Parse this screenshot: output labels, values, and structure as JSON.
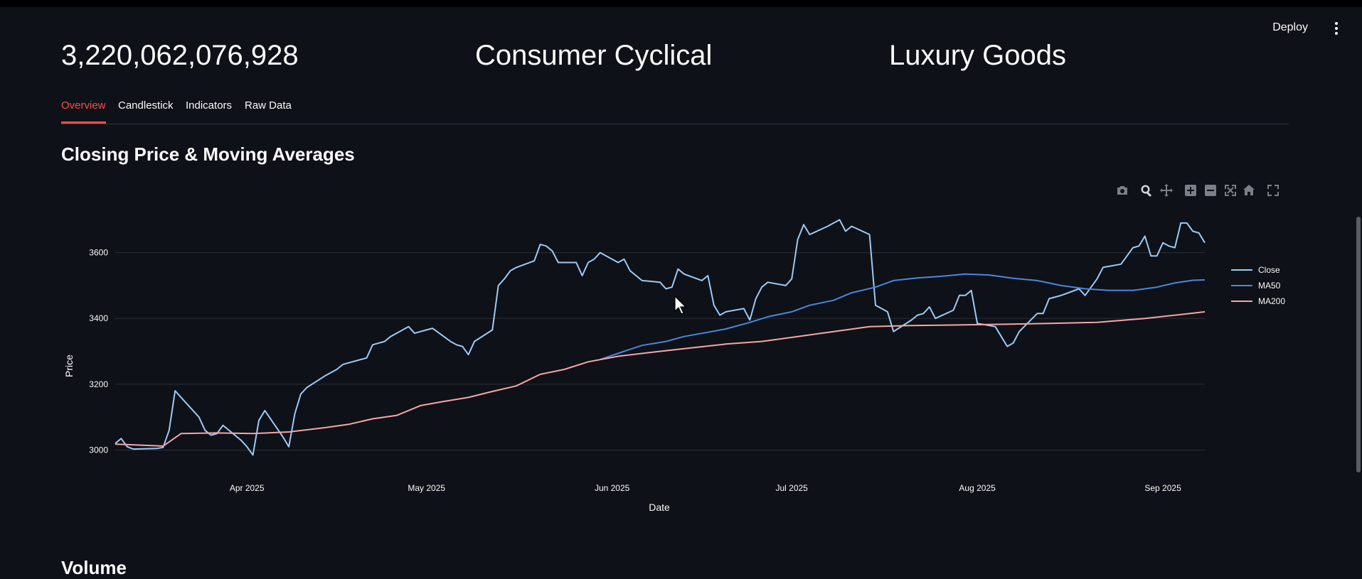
{
  "header": {
    "deploy_label": "Deploy",
    "metrics": [
      "3,220,062,076,928",
      "Consumer Cyclical",
      "Luxury Goods"
    ]
  },
  "tabs": [
    "Overview",
    "Candlestick",
    "Indicators",
    "Raw Data"
  ],
  "sections": {
    "price_title": "Closing Price & Moving Averages",
    "volume_title": "Volume"
  },
  "toolbar_icons": [
    "camera-icon",
    "zoom-icon",
    "pan-icon",
    "zoom-in-icon",
    "zoom-out-icon",
    "autoscale-icon",
    "home-icon",
    "fullscreen-icon"
  ],
  "chart_data": {
    "type": "line",
    "xlabel": "Date",
    "ylabel": "Price",
    "ylim": [
      2960,
      3720
    ],
    "y_ticks": [
      3000,
      3200,
      3400,
      3600
    ],
    "x_range": [
      "2025-03-10",
      "2025-09-08"
    ],
    "x_ticks": [
      {
        "date": "2025-04-01",
        "label": "Apr 2025"
      },
      {
        "date": "2025-05-01",
        "label": "May 2025"
      },
      {
        "date": "2025-06-01",
        "label": "Jun 2025"
      },
      {
        "date": "2025-07-01",
        "label": "Jul 2025"
      },
      {
        "date": "2025-08-01",
        "label": "Aug 2025"
      },
      {
        "date": "2025-09-01",
        "label": "Sep 2025"
      }
    ],
    "grid": true,
    "legend_position": "right",
    "series": [
      {
        "name": "Close",
        "color": "#9ccaf7",
        "points": [
          [
            "2025-03-10",
            3020
          ],
          [
            "2025-03-11",
            3035
          ],
          [
            "2025-03-12",
            3010
          ],
          [
            "2025-03-13",
            3003
          ],
          [
            "2025-03-17",
            3005
          ],
          [
            "2025-03-18",
            3008
          ],
          [
            "2025-03-19",
            3060
          ],
          [
            "2025-03-20",
            3180
          ],
          [
            "2025-03-21",
            3160
          ],
          [
            "2025-03-24",
            3100
          ],
          [
            "2025-03-25",
            3060
          ],
          [
            "2025-03-26",
            3045
          ],
          [
            "2025-03-27",
            3050
          ],
          [
            "2025-03-28",
            3075
          ],
          [
            "2025-03-31",
            3030
          ],
          [
            "2025-04-01",
            3010
          ],
          [
            "2025-04-02",
            2985
          ],
          [
            "2025-04-03",
            3090
          ],
          [
            "2025-04-04",
            3120
          ],
          [
            "2025-04-07",
            3040
          ],
          [
            "2025-04-08",
            3010
          ],
          [
            "2025-04-09",
            3110
          ],
          [
            "2025-04-10",
            3170
          ],
          [
            "2025-04-11",
            3190
          ],
          [
            "2025-04-14",
            3225
          ],
          [
            "2025-04-15",
            3235
          ],
          [
            "2025-04-16",
            3245
          ],
          [
            "2025-04-17",
            3260
          ],
          [
            "2025-04-18",
            3265
          ],
          [
            "2025-04-21",
            3280
          ],
          [
            "2025-04-22",
            3320
          ],
          [
            "2025-04-23",
            3325
          ],
          [
            "2025-04-24",
            3330
          ],
          [
            "2025-04-25",
            3345
          ],
          [
            "2025-04-28",
            3375
          ],
          [
            "2025-04-29",
            3355
          ],
          [
            "2025-04-30",
            3360
          ],
          [
            "2025-05-01",
            3365
          ],
          [
            "2025-05-02",
            3370
          ],
          [
            "2025-05-05",
            3330
          ],
          [
            "2025-05-06",
            3320
          ],
          [
            "2025-05-07",
            3315
          ],
          [
            "2025-05-08",
            3290
          ],
          [
            "2025-05-09",
            3330
          ],
          [
            "2025-05-12",
            3365
          ],
          [
            "2025-05-13",
            3500
          ],
          [
            "2025-05-14",
            3520
          ],
          [
            "2025-05-15",
            3545
          ],
          [
            "2025-05-16",
            3555
          ],
          [
            "2025-05-19",
            3575
          ],
          [
            "2025-05-20",
            3625
          ],
          [
            "2025-05-21",
            3620
          ],
          [
            "2025-05-22",
            3605
          ],
          [
            "2025-05-23",
            3570
          ],
          [
            "2025-05-26",
            3570
          ],
          [
            "2025-05-27",
            3530
          ],
          [
            "2025-05-28",
            3570
          ],
          [
            "2025-05-29",
            3580
          ],
          [
            "2025-05-30",
            3600
          ],
          [
            "2025-06-02",
            3570
          ],
          [
            "2025-06-03",
            3580
          ],
          [
            "2025-06-04",
            3545
          ],
          [
            "2025-06-05",
            3530
          ],
          [
            "2025-06-06",
            3515
          ],
          [
            "2025-06-09",
            3510
          ],
          [
            "2025-06-10",
            3490
          ],
          [
            "2025-06-11",
            3495
          ],
          [
            "2025-06-12",
            3550
          ],
          [
            "2025-06-13",
            3535
          ],
          [
            "2025-06-16",
            3515
          ],
          [
            "2025-06-17",
            3530
          ],
          [
            "2025-06-18",
            3440
          ],
          [
            "2025-06-19",
            3410
          ],
          [
            "2025-06-20",
            3420
          ],
          [
            "2025-06-23",
            3430
          ],
          [
            "2025-06-24",
            3395
          ],
          [
            "2025-06-25",
            3460
          ],
          [
            "2025-06-26",
            3495
          ],
          [
            "2025-06-27",
            3510
          ],
          [
            "2025-06-30",
            3500
          ],
          [
            "2025-07-01",
            3520
          ],
          [
            "2025-07-02",
            3640
          ],
          [
            "2025-07-03",
            3685
          ],
          [
            "2025-07-04",
            3655
          ],
          [
            "2025-07-07",
            3680
          ],
          [
            "2025-07-08",
            3690
          ],
          [
            "2025-07-09",
            3700
          ],
          [
            "2025-07-10",
            3665
          ],
          [
            "2025-07-11",
            3680
          ],
          [
            "2025-07-14",
            3655
          ],
          [
            "2025-07-15",
            3440
          ],
          [
            "2025-07-16",
            3430
          ],
          [
            "2025-07-17",
            3420
          ],
          [
            "2025-07-18",
            3360
          ],
          [
            "2025-07-21",
            3395
          ],
          [
            "2025-07-22",
            3410
          ],
          [
            "2025-07-23",
            3415
          ],
          [
            "2025-07-24",
            3435
          ],
          [
            "2025-07-25",
            3400
          ],
          [
            "2025-07-28",
            3425
          ],
          [
            "2025-07-29",
            3470
          ],
          [
            "2025-07-30",
            3470
          ],
          [
            "2025-07-31",
            3485
          ],
          [
            "2025-08-01",
            3385
          ],
          [
            "2025-08-04",
            3375
          ],
          [
            "2025-08-05",
            3345
          ],
          [
            "2025-08-06",
            3315
          ],
          [
            "2025-08-07",
            3325
          ],
          [
            "2025-08-08",
            3360
          ],
          [
            "2025-08-11",
            3415
          ],
          [
            "2025-08-12",
            3415
          ],
          [
            "2025-08-13",
            3460
          ],
          [
            "2025-08-14",
            3465
          ],
          [
            "2025-08-15",
            3470
          ],
          [
            "2025-08-18",
            3490
          ],
          [
            "2025-08-19",
            3470
          ],
          [
            "2025-08-20",
            3495
          ],
          [
            "2025-08-21",
            3520
          ],
          [
            "2025-08-22",
            3555
          ],
          [
            "2025-08-25",
            3565
          ],
          [
            "2025-08-26",
            3590
          ],
          [
            "2025-08-27",
            3615
          ],
          [
            "2025-08-28",
            3620
          ],
          [
            "2025-08-29",
            3650
          ],
          [
            "2025-08-30",
            3590
          ],
          [
            "2025-08-31",
            3590
          ],
          [
            "2025-09-01",
            3630
          ],
          [
            "2025-09-02",
            3620
          ],
          [
            "2025-09-03",
            3615
          ],
          [
            "2025-09-04",
            3690
          ],
          [
            "2025-09-05",
            3690
          ],
          [
            "2025-09-06",
            3665
          ],
          [
            "2025-09-07",
            3660
          ],
          [
            "2025-09-08",
            3630
          ]
        ]
      },
      {
        "name": "MA50",
        "color": "#4a86e0",
        "points": [
          [
            "2025-05-30",
            3275
          ],
          [
            "2025-06-03",
            3300
          ],
          [
            "2025-06-06",
            3318
          ],
          [
            "2025-06-10",
            3330
          ],
          [
            "2025-06-13",
            3345
          ],
          [
            "2025-06-17",
            3358
          ],
          [
            "2025-06-20",
            3368
          ],
          [
            "2025-06-24",
            3388
          ],
          [
            "2025-06-27",
            3405
          ],
          [
            "2025-07-01",
            3420
          ],
          [
            "2025-07-04",
            3440
          ],
          [
            "2025-07-08",
            3455
          ],
          [
            "2025-07-11",
            3478
          ],
          [
            "2025-07-15",
            3495
          ],
          [
            "2025-07-18",
            3515
          ],
          [
            "2025-07-22",
            3523
          ],
          [
            "2025-07-26",
            3528
          ],
          [
            "2025-07-30",
            3535
          ],
          [
            "2025-08-03",
            3532
          ],
          [
            "2025-08-07",
            3522
          ],
          [
            "2025-08-11",
            3515
          ],
          [
            "2025-08-15",
            3500
          ],
          [
            "2025-08-19",
            3490
          ],
          [
            "2025-08-23",
            3485
          ],
          [
            "2025-08-27",
            3485
          ],
          [
            "2025-08-31",
            3495
          ],
          [
            "2025-09-03",
            3508
          ],
          [
            "2025-09-06",
            3516
          ],
          [
            "2025-09-08",
            3517
          ]
        ]
      },
      {
        "name": "MA200",
        "color": "#f4a6a6",
        "points": [
          [
            "2025-03-10",
            3018
          ],
          [
            "2025-03-14",
            3015
          ],
          [
            "2025-03-18",
            3012
          ],
          [
            "2025-03-21",
            3050
          ],
          [
            "2025-03-27",
            3052
          ],
          [
            "2025-04-02",
            3050
          ],
          [
            "2025-04-08",
            3055
          ],
          [
            "2025-04-14",
            3068
          ],
          [
            "2025-04-18",
            3078
          ],
          [
            "2025-04-22",
            3095
          ],
          [
            "2025-04-26",
            3105
          ],
          [
            "2025-04-30",
            3135
          ],
          [
            "2025-05-04",
            3148
          ],
          [
            "2025-05-08",
            3160
          ],
          [
            "2025-05-12",
            3178
          ],
          [
            "2025-05-16",
            3195
          ],
          [
            "2025-05-20",
            3230
          ],
          [
            "2025-05-24",
            3245
          ],
          [
            "2025-05-28",
            3268
          ],
          [
            "2025-06-02",
            3285
          ],
          [
            "2025-06-08",
            3298
          ],
          [
            "2025-06-14",
            3310
          ],
          [
            "2025-06-20",
            3322
          ],
          [
            "2025-06-26",
            3330
          ],
          [
            "2025-07-02",
            3345
          ],
          [
            "2025-07-08",
            3360
          ],
          [
            "2025-07-14",
            3375
          ],
          [
            "2025-07-20",
            3378
          ],
          [
            "2025-07-28",
            3380
          ],
          [
            "2025-08-05",
            3382
          ],
          [
            "2025-08-13",
            3385
          ],
          [
            "2025-08-21",
            3388
          ],
          [
            "2025-08-29",
            3400
          ],
          [
            "2025-09-04",
            3412
          ],
          [
            "2025-09-08",
            3420
          ]
        ]
      }
    ]
  }
}
